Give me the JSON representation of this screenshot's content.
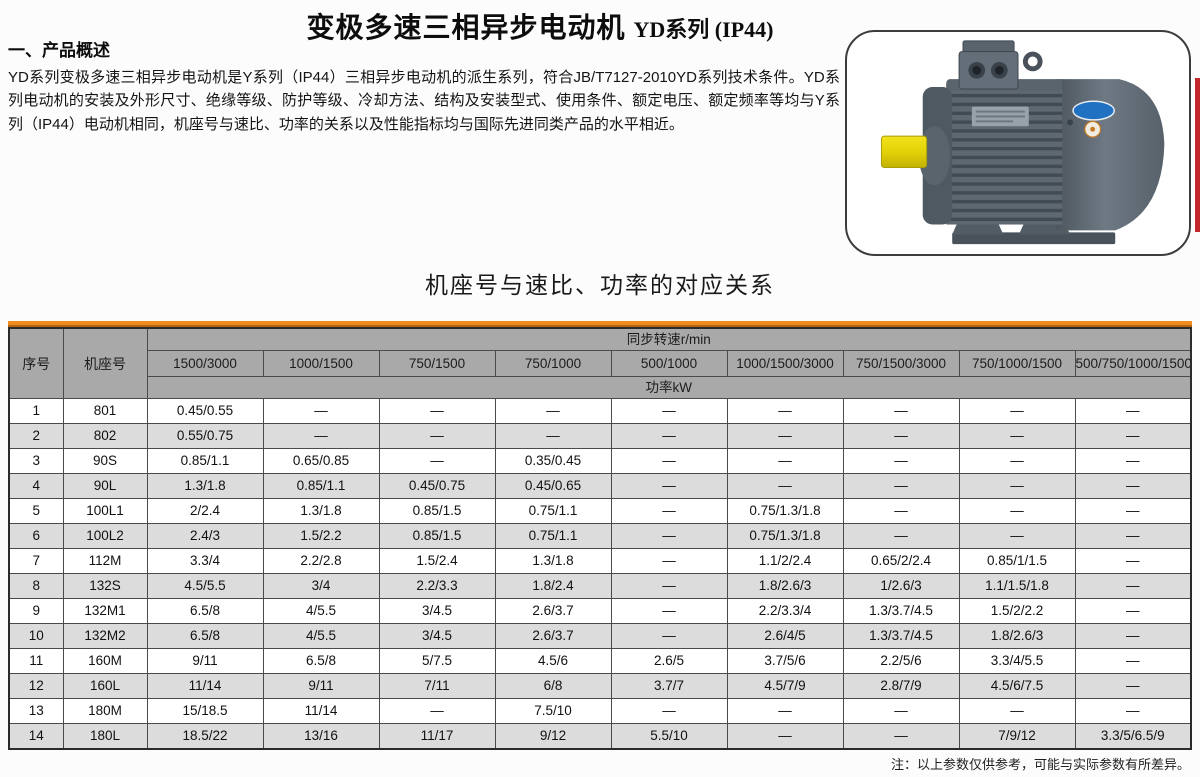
{
  "header": {
    "title_main": "变极多速三相异步电动机",
    "title_series": "YD系列 (IP44)"
  },
  "overview": {
    "heading": "一、产品概述",
    "body": "YD系列变极多速三相异步电动机是Y系列（IP44）三相异步电动机的派生系列，符合JB/T7127-2010YD系列技术条件。YD系列电动机的安装及外形尺寸、绝缘等级、防护等级、冷却方法、结构及安装型式、使用条件、额定电压、额定频率等均与Y系列（IP44）电动机相同，机座号与速比、功率的关系以及性能指标均与国际先进同类产品的水平相近。"
  },
  "table_section": {
    "title": "机座号与速比、功率的对应关系",
    "footnote": "注：以上参数仅供参考，可能与实际参数有所差异。"
  },
  "table": {
    "seq_header": "序号",
    "frame_header": "机座号",
    "speed_group_header": "同步转速r/min",
    "power_group_header": "功率kW",
    "speed_ratios": [
      "1500/3000",
      "1000/1500",
      "750/1500",
      "750/1000",
      "500/1000",
      "1000/1500/3000",
      "750/1500/3000",
      "750/1000/1500",
      "500/750/1000/1500"
    ],
    "rows": [
      {
        "seq": "1",
        "frame": "801",
        "values": [
          "0.45/0.55",
          "—",
          "—",
          "—",
          "—",
          "—",
          "—",
          "—",
          "—"
        ]
      },
      {
        "seq": "2",
        "frame": "802",
        "values": [
          "0.55/0.75",
          "—",
          "—",
          "—",
          "—",
          "—",
          "—",
          "—",
          "—"
        ]
      },
      {
        "seq": "3",
        "frame": "90S",
        "values": [
          "0.85/1.1",
          "0.65/0.85",
          "—",
          "0.35/0.45",
          "—",
          "—",
          "—",
          "—",
          "—"
        ]
      },
      {
        "seq": "4",
        "frame": "90L",
        "values": [
          "1.3/1.8",
          "0.85/1.1",
          "0.45/0.75",
          "0.45/0.65",
          "—",
          "—",
          "—",
          "—",
          "—"
        ]
      },
      {
        "seq": "5",
        "frame": "100L1",
        "values": [
          "2/2.4",
          "1.3/1.8",
          "0.85/1.5",
          "0.75/1.1",
          "—",
          "0.75/1.3/1.8",
          "—",
          "—",
          "—"
        ]
      },
      {
        "seq": "6",
        "frame": "100L2",
        "values": [
          "2.4/3",
          "1.5/2.2",
          "0.85/1.5",
          "0.75/1.1",
          "—",
          "0.75/1.3/1.8",
          "—",
          "—",
          "—"
        ]
      },
      {
        "seq": "7",
        "frame": "112M",
        "values": [
          "3.3/4",
          "2.2/2.8",
          "1.5/2.4",
          "1.3/1.8",
          "—",
          "1.1/2/2.4",
          "0.65/2/2.4",
          "0.85/1/1.5",
          "—"
        ]
      },
      {
        "seq": "8",
        "frame": "132S",
        "values": [
          "4.5/5.5",
          "3/4",
          "2.2/3.3",
          "1.8/2.4",
          "—",
          "1.8/2.6/3",
          "1/2.6/3",
          "1.1/1.5/1.8",
          "—"
        ]
      },
      {
        "seq": "9",
        "frame": "132M1",
        "values": [
          "6.5/8",
          "4/5.5",
          "3/4.5",
          "2.6/3.7",
          "—",
          "2.2/3.3/4",
          "1.3/3.7/4.5",
          "1.5/2/2.2",
          "—"
        ]
      },
      {
        "seq": "10",
        "frame": "132M2",
        "values": [
          "6.5/8",
          "4/5.5",
          "3/4.5",
          "2.6/3.7",
          "—",
          "2.6/4/5",
          "1.3/3.7/4.5",
          "1.8/2.6/3",
          "—"
        ]
      },
      {
        "seq": "11",
        "frame": "160M",
        "values": [
          "9/11",
          "6.5/8",
          "5/7.5",
          "4.5/6",
          "2.6/5",
          "3.7/5/6",
          "2.2/5/6",
          "3.3/4/5.5",
          "—"
        ]
      },
      {
        "seq": "12",
        "frame": "160L",
        "values": [
          "11/14",
          "9/11",
          "7/11",
          "6/8",
          "3.7/7",
          "4.5/7/9",
          "2.8/7/9",
          "4.5/6/7.5",
          "—"
        ]
      },
      {
        "seq": "13",
        "frame": "180M",
        "values": [
          "15/18.5",
          "11/14",
          "—",
          "7.5/10",
          "—",
          "—",
          "—",
          "—",
          "—"
        ]
      },
      {
        "seq": "14",
        "frame": "180L",
        "values": [
          "18.5/22",
          "13/16",
          "11/17",
          "9/12",
          "5.5/10",
          "—",
          "—",
          "7/9/12",
          "3.3/5/6.5/9"
        ]
      }
    ]
  },
  "colors": {
    "accent_orange": "#ee8d1e",
    "header_gray": "#a9a9a9",
    "row_alt_gray": "#dcdcdc",
    "red_edge_bar": "#c2272d"
  }
}
